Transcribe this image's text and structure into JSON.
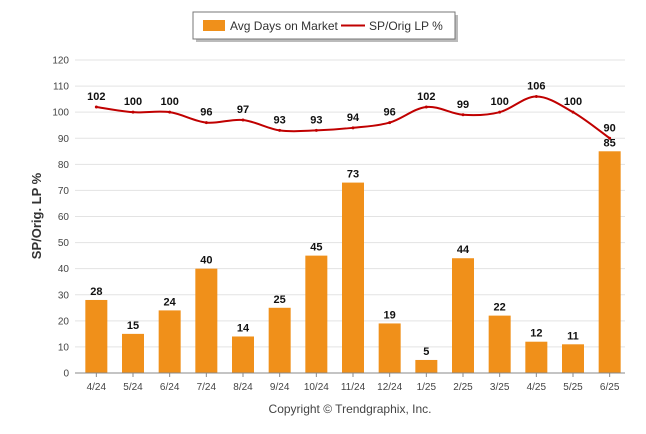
{
  "chart_data": {
    "type": "bar",
    "categories": [
      "4/24",
      "5/24",
      "6/24",
      "7/24",
      "8/24",
      "9/24",
      "10/24",
      "11/24",
      "12/24",
      "1/25",
      "2/25",
      "3/25",
      "4/25",
      "5/25",
      "6/25"
    ],
    "series": [
      {
        "name": "Avg Days on Market",
        "type": "bar",
        "color": "#f0901a",
        "values": [
          28,
          15,
          24,
          40,
          14,
          25,
          45,
          73,
          19,
          5,
          44,
          22,
          12,
          11,
          85
        ]
      },
      {
        "name": "SP/Orig LP %",
        "type": "line",
        "color": "#c00000",
        "values": [
          102,
          100,
          100,
          96,
          97,
          93,
          93,
          94,
          96,
          102,
          99,
          100,
          106,
          100,
          90
        ]
      }
    ],
    "ylabel": "SP/Orig. LP %",
    "ylim": [
      0,
      120
    ],
    "yticks": [
      0,
      10,
      20,
      30,
      40,
      50,
      60,
      70,
      80,
      90,
      100,
      110,
      120
    ],
    "grid": true,
    "legend_position": "top-center"
  },
  "footer": "Copyright © Trendgraphix, Inc."
}
